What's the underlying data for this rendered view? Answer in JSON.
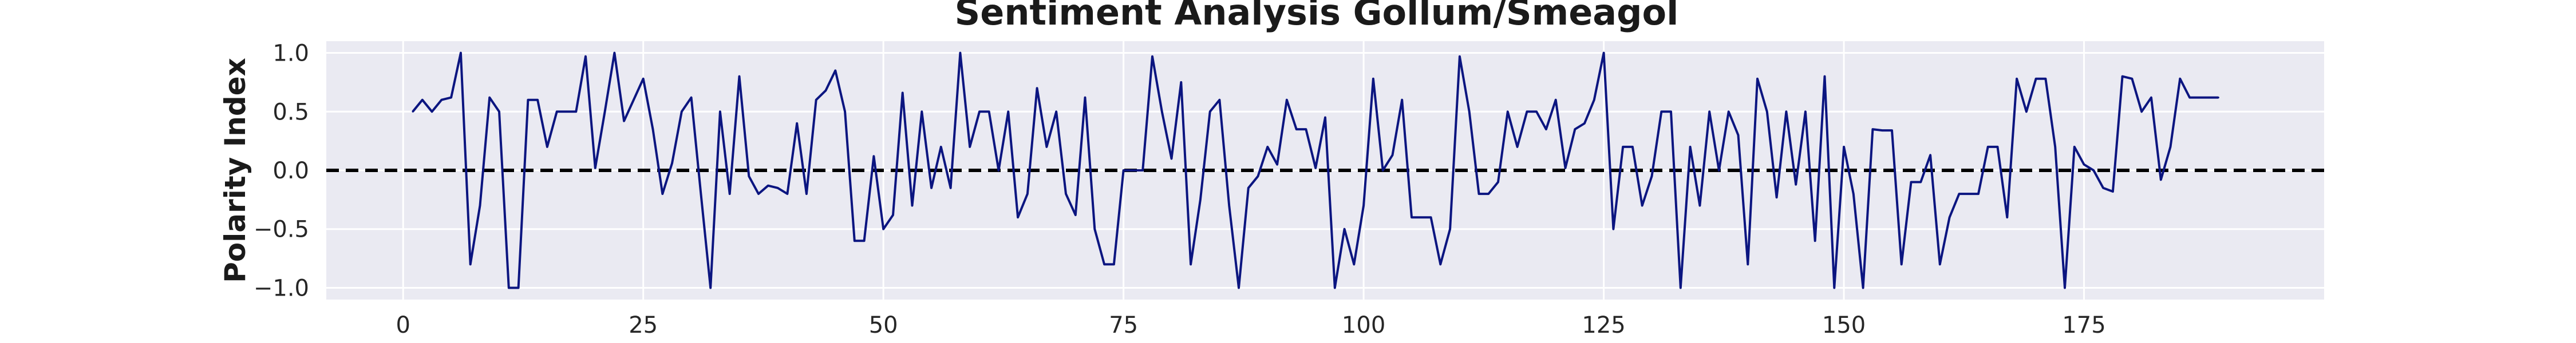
{
  "chart_data": {
    "type": "line",
    "title": "Sentiment Analysis Gollum/Smeagol",
    "xlabel": "",
    "ylabel": "Polarity Index",
    "xlim": [
      -8,
      200
    ],
    "ylim": [
      -1.1,
      1.1
    ],
    "grid": true,
    "background_color": "#eaeaf2",
    "grid_color": "#ffffff",
    "line_color": "#0b1580",
    "reference_line": {
      "y": 0.0,
      "style": "dashed",
      "color": "#000000"
    },
    "x_ticks": [
      {
        "value": 0,
        "label": "0"
      },
      {
        "value": 25,
        "label": "25"
      },
      {
        "value": 50,
        "label": "50"
      },
      {
        "value": 75,
        "label": "75"
      },
      {
        "value": 100,
        "label": "100"
      },
      {
        "value": 125,
        "label": "125"
      },
      {
        "value": 150,
        "label": "150"
      },
      {
        "value": 175,
        "label": "175"
      }
    ],
    "y_ticks": [
      {
        "value": 1.0,
        "label": "1.0"
      },
      {
        "value": 0.5,
        "label": "0.5"
      },
      {
        "value": 0.0,
        "label": "0.0"
      },
      {
        "value": -0.5,
        "label": "−0.5"
      },
      {
        "value": -1.0,
        "label": "−1.0"
      }
    ],
    "series": [
      {
        "x": [
          1,
          2,
          3,
          4,
          5,
          6,
          7,
          8,
          9,
          10,
          11,
          12,
          13,
          14,
          15,
          16,
          17,
          18,
          19,
          20,
          21,
          22,
          23,
          24,
          25,
          26,
          27,
          28,
          29,
          30,
          31,
          32,
          33,
          34,
          35,
          36,
          37,
          38,
          39,
          40,
          41,
          42,
          43,
          44,
          45,
          46,
          47,
          48,
          49,
          50,
          51,
          52,
          53,
          54,
          55,
          56,
          57,
          58,
          59,
          60,
          61,
          62,
          63,
          64,
          65,
          66,
          67,
          68,
          69,
          70,
          71,
          72,
          73,
          74,
          75,
          76,
          77,
          78,
          79,
          80,
          81,
          82,
          83,
          84,
          85,
          86,
          87,
          88,
          89,
          90,
          91,
          92,
          93,
          94,
          95,
          96,
          97,
          98,
          99,
          100,
          101,
          102,
          103,
          104,
          105,
          106,
          107,
          108,
          109,
          110,
          111,
          112,
          113,
          114,
          115,
          116,
          117,
          118,
          119,
          120,
          121,
          122,
          123,
          124,
          125,
          126,
          127,
          128,
          129,
          130,
          131,
          132,
          133,
          134,
          135,
          136,
          137,
          138,
          139,
          140,
          141,
          142,
          143,
          144,
          145,
          146,
          147,
          148,
          149,
          150,
          151,
          152,
          153,
          154,
          155,
          156,
          157,
          158,
          159,
          160,
          161,
          162,
          163,
          164,
          165,
          166,
          167,
          168,
          169,
          170,
          171,
          172,
          173,
          174,
          175,
          176,
          177,
          178,
          179,
          180,
          181,
          182,
          183,
          184,
          185,
          186,
          187,
          188,
          189
        ],
        "y": [
          0.5,
          0.6,
          0.5,
          0.6,
          0.62,
          1.0,
          -0.8,
          -0.3,
          0.62,
          0.5,
          -1.0,
          -1.0,
          0.6,
          0.6,
          0.2,
          0.5,
          0.5,
          0.5,
          0.97,
          0.02,
          0.5,
          1.0,
          0.42,
          0.6,
          0.78,
          0.35,
          -0.2,
          0.06,
          0.5,
          0.62,
          -0.2,
          -1.0,
          0.5,
          -0.2,
          0.8,
          -0.05,
          -0.2,
          -0.13,
          -0.15,
          -0.2,
          0.4,
          -0.2,
          0.6,
          0.68,
          0.85,
          0.5,
          -0.6,
          -0.6,
          0.12,
          -0.5,
          -0.38,
          0.66,
          -0.3,
          0.5,
          -0.15,
          0.2,
          -0.15,
          1.0,
          0.2,
          0.5,
          0.5,
          0.0,
          0.5,
          -0.4,
          -0.2,
          0.7,
          0.2,
          0.5,
          -0.2,
          -0.38,
          0.62,
          -0.5,
          -0.8,
          -0.8,
          0.0,
          0.0,
          0.0,
          0.97,
          0.5,
          0.1,
          0.75,
          -0.8,
          -0.25,
          0.5,
          0.6,
          -0.3,
          -1.0,
          -0.15,
          -0.05,
          0.2,
          0.05,
          0.6,
          0.35,
          0.35,
          0.02,
          0.45,
          -1.0,
          -0.5,
          -0.8,
          -0.3,
          0.78,
          0.0,
          0.13,
          0.6,
          -0.4,
          -0.4,
          -0.4,
          -0.8,
          -0.5,
          0.97,
          0.5,
          -0.2,
          -0.2,
          -0.1,
          0.5,
          0.2,
          0.5,
          0.5,
          0.35,
          0.6,
          0.02,
          0.35,
          0.4,
          0.6,
          1.0,
          -0.5,
          0.2,
          0.2,
          -0.3,
          -0.05,
          0.5,
          0.5,
          -1.0,
          0.2,
          -0.3,
          0.5,
          0.0,
          0.5,
          0.3,
          -0.8,
          0.78,
          0.5,
          -0.23,
          0.5,
          -0.12,
          0.5,
          -0.6,
          0.8,
          -1.0,
          0.2,
          -0.2,
          -1.0,
          0.35,
          0.34,
          0.34,
          -0.8,
          -0.1,
          -0.1,
          0.13,
          -0.8,
          -0.4,
          -0.2,
          -0.2,
          -0.2,
          0.2,
          0.2,
          -0.4,
          0.78,
          0.5,
          0.78,
          0.78,
          0.2,
          -1.0,
          0.2,
          0.05,
          0.0,
          -0.15,
          -0.18,
          0.8,
          0.78,
          0.5,
          0.62,
          -0.08,
          0.2,
          0.78,
          0.62,
          0.62,
          0.62,
          0.62
        ]
      }
    ]
  }
}
